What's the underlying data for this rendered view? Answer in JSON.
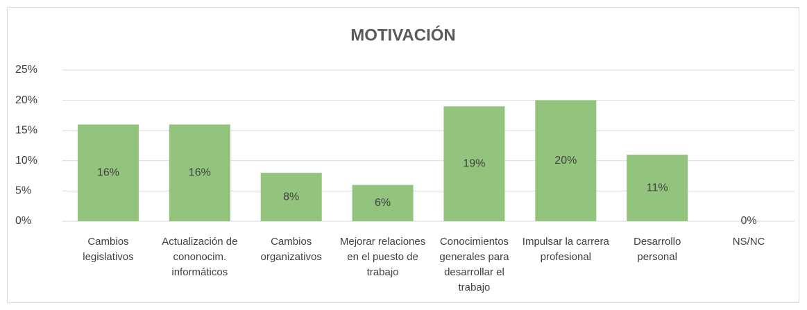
{
  "chart_data": {
    "type": "bar",
    "title": "MOTIVACIÓN",
    "categories": [
      "Cambios legislativos",
      "Actualización de cononocim. informáticos",
      "Cambios organizativos",
      "Mejorar relaciones en el puesto de trabajo",
      "Conocimientos generales para desarrollar el trabajo",
      "Impulsar la carrera profesional",
      "Desarrollo personal",
      "NS/NC"
    ],
    "values": [
      16,
      16,
      8,
      6,
      19,
      20,
      11,
      0
    ],
    "value_labels": [
      "16%",
      "16%",
      "8%",
      "6%",
      "19%",
      "20%",
      "11%",
      "0%"
    ],
    "color": "#93c47d",
    "ylim": [
      0,
      25
    ],
    "yticks": [
      {
        "value": 0,
        "label": "0%"
      },
      {
        "value": 5,
        "label": "5%"
      },
      {
        "value": 10,
        "label": "10%"
      },
      {
        "value": 15,
        "label": "15%"
      },
      {
        "value": 20,
        "label": "20%"
      },
      {
        "value": 25,
        "label": "25%"
      }
    ],
    "grid": true
  }
}
